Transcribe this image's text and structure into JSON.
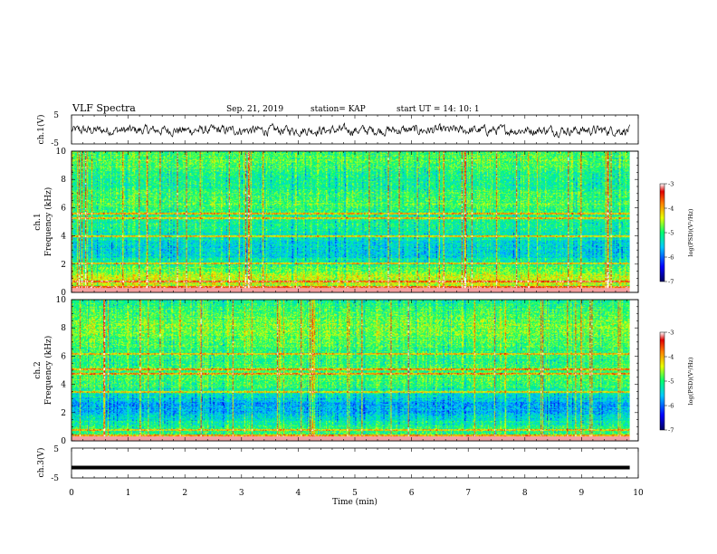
{
  "header": {
    "title": "VLF Spectra",
    "date": "Sep. 21, 2019",
    "station": "station= KAP",
    "start": "start  UT =   14: 10: 1"
  },
  "chart_data": [
    {
      "type": "line",
      "panel": "ch1-waveform",
      "ylabel": "ch.1(V)",
      "ylim": [
        -5,
        5
      ],
      "yticks": [
        "5",
        "-5"
      ],
      "xlim": [
        0,
        10
      ],
      "series": [
        {
          "stroke": "#000000",
          "x_range": [
            0,
            9.85
          ],
          "mean": -0.3,
          "amplitude": 1.6
        }
      ]
    },
    {
      "type": "heatmap",
      "panel": "ch1-spectrogram",
      "ylabel": "ch.1\nFrequency  (kHz)",
      "ylim": [
        0,
        10
      ],
      "yticks": [
        "0",
        "2",
        "4",
        "6",
        "8",
        "10"
      ],
      "xlim": [
        0,
        9.85
      ],
      "colorbar": {
        "label": "log(PSD)(V²/Hz)",
        "range": [
          -7,
          -3
        ],
        "ticks": [
          "-3",
          "-4",
          "-5",
          "-6",
          "-7"
        ]
      },
      "strong_bands_khz": [
        0.4,
        0.8,
        2.1,
        4.0,
        5.3,
        5.6
      ]
    },
    {
      "type": "heatmap",
      "panel": "ch2-spectrogram",
      "ylabel": "ch.2\nFrequency  (kHz)",
      "ylim": [
        0,
        10
      ],
      "yticks": [
        "0",
        "2",
        "4",
        "6",
        "8",
        "10"
      ],
      "xlim": [
        0,
        9.85
      ],
      "colorbar": {
        "label": "log(PSD)(V²/Hz)",
        "range": [
          -7,
          -3
        ],
        "ticks": [
          "-3",
          "-4",
          "-5",
          "-6",
          "-7"
        ]
      },
      "strong_bands_khz": [
        0.4,
        0.8,
        3.5,
        4.8,
        5.1,
        6.2
      ]
    },
    {
      "type": "line",
      "panel": "ch3-waveform",
      "ylabel": "ch.3(V)",
      "xlabel": "Time  (min)",
      "ylim": [
        -5,
        5
      ],
      "yticks": [
        "5",
        "-5"
      ],
      "xlim": [
        0,
        10
      ],
      "xticks": [
        "0",
        "1",
        "2",
        "3",
        "4",
        "5",
        "6",
        "7",
        "8",
        "9",
        "10"
      ],
      "series": [
        {
          "stroke": "#000000",
          "x_range": [
            0,
            9.85
          ],
          "constant": -1.5
        }
      ]
    }
  ],
  "colors": {
    "colormap": [
      "#000080",
      "#0000ff",
      "#00bfff",
      "#00ff80",
      "#ffff00",
      "#ff8000",
      "#e00000",
      "#ffffff"
    ]
  }
}
